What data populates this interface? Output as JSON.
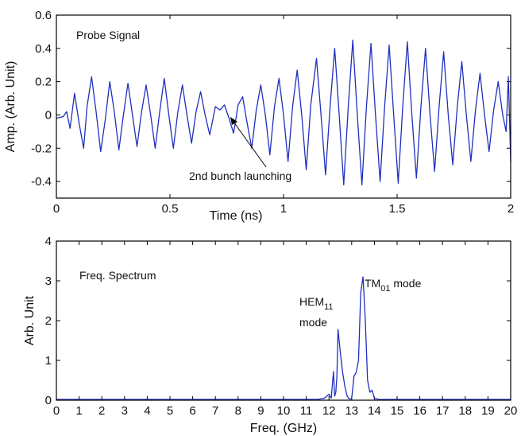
{
  "chart_data": [
    {
      "type": "line",
      "panel": "top",
      "label_text": "Probe Signal",
      "xlabel": "Time (ns)",
      "ylabel": "Amp. (Arb. Unit)",
      "xlim": [
        0,
        2
      ],
      "ylim": [
        -0.5,
        0.6
      ],
      "xticks": [
        0,
        0.5,
        1,
        1.5,
        2
      ],
      "yticks": [
        -0.4,
        -0.2,
        0,
        0.2,
        0.4,
        0.6
      ],
      "grid": false,
      "line_color": "#1f2fbf",
      "annotation": {
        "text": "2nd bunch launching",
        "point_to": [
          0.74,
          0.0
        ]
      },
      "series": [
        {
          "points": [
            [
              0,
              -0.02
            ],
            [
              0.03,
              -0.01
            ],
            [
              0.045,
              0.02
            ],
            [
              0.06,
              -0.08
            ],
            [
              0.08,
              0.13
            ],
            [
              0.1,
              -0.05
            ],
            [
              0.12,
              -0.2
            ],
            [
              0.135,
              0.05
            ],
            [
              0.155,
              0.23
            ],
            [
              0.175,
              0.02
            ],
            [
              0.195,
              -0.22
            ],
            [
              0.215,
              -0.03
            ],
            [
              0.235,
              0.2
            ],
            [
              0.255,
              0.02
            ],
            [
              0.275,
              -0.21
            ],
            [
              0.295,
              0.0
            ],
            [
              0.315,
              0.19
            ],
            [
              0.335,
              0.0
            ],
            [
              0.355,
              -0.19
            ],
            [
              0.375,
              0.02
            ],
            [
              0.395,
              0.18
            ],
            [
              0.415,
              0.0
            ],
            [
              0.435,
              -0.2
            ],
            [
              0.455,
              0.02
            ],
            [
              0.475,
              0.22
            ],
            [
              0.495,
              0.0
            ],
            [
              0.515,
              -0.2
            ],
            [
              0.535,
              0.02
            ],
            [
              0.555,
              0.18
            ],
            [
              0.575,
              0.0
            ],
            [
              0.595,
              -0.17
            ],
            [
              0.615,
              0.02
            ],
            [
              0.635,
              0.14
            ],
            [
              0.655,
              0.0
            ],
            [
              0.675,
              -0.12
            ],
            [
              0.7,
              0.05
            ],
            [
              0.72,
              0.03
            ],
            [
              0.74,
              0.06
            ],
            [
              0.76,
              -0.02
            ],
            [
              0.78,
              -0.11
            ],
            [
              0.8,
              0.06
            ],
            [
              0.82,
              0.11
            ],
            [
              0.84,
              -0.05
            ],
            [
              0.86,
              -0.2
            ],
            [
              0.88,
              0.03
            ],
            [
              0.9,
              0.18
            ],
            [
              0.92,
              0.0
            ],
            [
              0.94,
              -0.24
            ],
            [
              0.96,
              0.05
            ],
            [
              0.98,
              0.22
            ],
            [
              1.0,
              0.0
            ],
            [
              1.02,
              -0.28
            ],
            [
              1.04,
              0.05
            ],
            [
              1.06,
              0.27
            ],
            [
              1.08,
              0.0
            ],
            [
              1.1,
              -0.33
            ],
            [
              1.12,
              0.06
            ],
            [
              1.145,
              0.34
            ],
            [
              1.165,
              0.0
            ],
            [
              1.185,
              -0.36
            ],
            [
              1.205,
              0.05
            ],
            [
              1.225,
              0.4
            ],
            [
              1.245,
              0.0
            ],
            [
              1.265,
              -0.42
            ],
            [
              1.285,
              0.05
            ],
            [
              1.305,
              0.45
            ],
            [
              1.325,
              0.0
            ],
            [
              1.345,
              -0.42
            ],
            [
              1.365,
              0.05
            ],
            [
              1.385,
              0.43
            ],
            [
              1.405,
              0.0
            ],
            [
              1.425,
              -0.4
            ],
            [
              1.445,
              0.05
            ],
            [
              1.465,
              0.42
            ],
            [
              1.485,
              0.0
            ],
            [
              1.505,
              -0.41
            ],
            [
              1.525,
              0.05
            ],
            [
              1.545,
              0.44
            ],
            [
              1.565,
              0.0
            ],
            [
              1.585,
              -0.38
            ],
            [
              1.605,
              0.05
            ],
            [
              1.625,
              0.4
            ],
            [
              1.645,
              0.0
            ],
            [
              1.665,
              -0.34
            ],
            [
              1.685,
              0.05
            ],
            [
              1.705,
              0.38
            ],
            [
              1.725,
              0.0
            ],
            [
              1.745,
              -0.3
            ],
            [
              1.765,
              0.05
            ],
            [
              1.785,
              0.32
            ],
            [
              1.805,
              0.0
            ],
            [
              1.825,
              -0.28
            ],
            [
              1.845,
              0.03
            ],
            [
              1.865,
              0.25
            ],
            [
              1.885,
              0.0
            ],
            [
              1.905,
              -0.22
            ],
            [
              1.925,
              0.03
            ],
            [
              1.945,
              0.2
            ],
            [
              1.965,
              0.0
            ],
            [
              1.98,
              -0.1
            ],
            [
              1.99,
              0.23
            ],
            [
              2.0,
              -0.28
            ]
          ]
        }
      ]
    },
    {
      "type": "line",
      "panel": "bottom",
      "label_text": "Freq. Spectrum",
      "xlabel": "Freq. (GHz)",
      "ylabel": "Arb. Unit",
      "xlim": [
        0,
        20
      ],
      "ylim": [
        0,
        4
      ],
      "xticks": [
        0,
        1,
        2,
        3,
        4,
        5,
        6,
        7,
        8,
        9,
        10,
        11,
        12,
        13,
        14,
        15,
        16,
        17,
        18,
        19,
        20
      ],
      "yticks": [
        0,
        1,
        2,
        3,
        4
      ],
      "grid": false,
      "line_color": "#1f2fbf",
      "annotations": [
        {
          "main": "HEM",
          "sub": "11",
          "second_line": "mode",
          "point": [
            12.4,
            1.78
          ]
        },
        {
          "main": "TM",
          "sub": "01",
          "suffix": " mode",
          "point": [
            13.5,
            3.1
          ]
        }
      ],
      "series": [
        {
          "points": [
            [
              0,
              0.02
            ],
            [
              10,
              0.02
            ],
            [
              11.5,
              0.02
            ],
            [
              11.8,
              0.05
            ],
            [
              12.0,
              0.15
            ],
            [
              12.1,
              0.05
            ],
            [
              12.2,
              0.72
            ],
            [
              12.25,
              0.1
            ],
            [
              12.3,
              0.2
            ],
            [
              12.35,
              0.6
            ],
            [
              12.4,
              1.78
            ],
            [
              12.5,
              1.2
            ],
            [
              12.6,
              0.7
            ],
            [
              12.7,
              0.35
            ],
            [
              12.8,
              0.1
            ],
            [
              12.9,
              0.03
            ],
            [
              13.0,
              0.04
            ],
            [
              13.1,
              0.6
            ],
            [
              13.2,
              0.7
            ],
            [
              13.3,
              1.0
            ],
            [
              13.4,
              2.7
            ],
            [
              13.5,
              3.1
            ],
            [
              13.6,
              2.0
            ],
            [
              13.7,
              0.5
            ],
            [
              13.8,
              0.2
            ],
            [
              13.9,
              0.25
            ],
            [
              14.0,
              0.05
            ],
            [
              14.2,
              0.02
            ],
            [
              15,
              0.02
            ],
            [
              20,
              0.02
            ]
          ]
        }
      ]
    }
  ]
}
